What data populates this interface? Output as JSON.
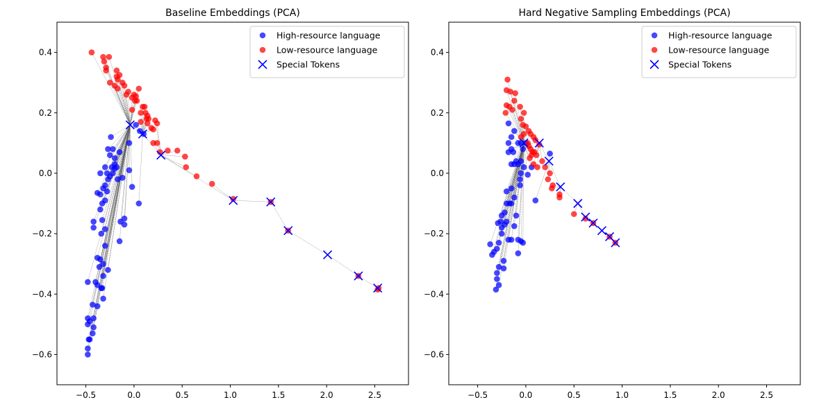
{
  "legend_labels": {
    "high": "High-resource language",
    "low": "Low-resource language",
    "special": "Special Tokens"
  },
  "colors": {
    "high": "#0000ff",
    "low": "#ff0000",
    "special": "#0000ff",
    "special_low": "#ff0000",
    "connector": "#555555"
  },
  "chart_data": [
    {
      "type": "scatter",
      "title": "Baseline Embeddings (PCA)",
      "xlabel": "",
      "ylabel": "",
      "xlim": [
        -0.8,
        2.85
      ],
      "ylim": [
        -0.7,
        0.5
      ],
      "xticks": [
        -0.5,
        0.0,
        0.5,
        1.0,
        1.5,
        2.0,
        2.5
      ],
      "xtick_labels": [
        "−0.5",
        "0.0",
        "0.5",
        "1.0",
        "1.5",
        "2.0",
        "2.5"
      ],
      "yticks": [
        -0.6,
        -0.4,
        -0.2,
        0.0,
        0.2,
        0.4
      ],
      "ytick_labels": [
        "−0.6",
        "−0.4",
        "−0.2",
        "0.0",
        "0.2",
        "0.4"
      ],
      "grid": false,
      "legend_position": "top-right",
      "series": [
        {
          "name": "High-resource language",
          "marker": "circle",
          "points": [
            [
              -0.48,
              -0.6
            ],
            [
              -0.48,
              -0.58
            ],
            [
              -0.47,
              -0.55
            ],
            [
              -0.46,
              -0.55
            ],
            [
              -0.48,
              -0.5
            ],
            [
              -0.48,
              -0.48
            ],
            [
              -0.46,
              -0.49
            ],
            [
              -0.43,
              -0.53
            ],
            [
              -0.42,
              -0.51
            ],
            [
              -0.42,
              -0.48
            ],
            [
              -0.43,
              -0.435
            ],
            [
              -0.38,
              -0.44
            ],
            [
              -0.32,
              -0.415
            ],
            [
              -0.48,
              -0.36
            ],
            [
              -0.4,
              -0.36
            ],
            [
              -0.38,
              -0.37
            ],
            [
              -0.34,
              -0.38
            ],
            [
              -0.33,
              -0.38
            ],
            [
              -0.32,
              -0.34
            ],
            [
              -0.27,
              -0.32
            ],
            [
              -0.36,
              -0.31
            ],
            [
              -0.38,
              -0.28
            ],
            [
              -0.35,
              -0.285
            ],
            [
              -0.32,
              -0.3
            ],
            [
              -0.3,
              -0.24
            ],
            [
              -0.3,
              -0.185
            ],
            [
              -0.33,
              -0.155
            ],
            [
              -0.34,
              -0.2
            ],
            [
              -0.42,
              -0.18
            ],
            [
              -0.42,
              -0.16
            ],
            [
              -0.14,
              -0.16
            ],
            [
              -0.1,
              -0.15
            ],
            [
              -0.1,
              -0.17
            ],
            [
              -0.15,
              -0.225
            ],
            [
              -0.35,
              -0.12
            ],
            [
              -0.33,
              -0.1
            ],
            [
              -0.3,
              -0.09
            ],
            [
              -0.35,
              -0.07
            ],
            [
              -0.38,
              -0.065
            ],
            [
              -0.32,
              -0.05
            ],
            [
              -0.3,
              -0.04
            ],
            [
              -0.28,
              -0.06
            ],
            [
              -0.27,
              -0.02
            ],
            [
              -0.25,
              -0.01
            ],
            [
              -0.22,
              0.0
            ],
            [
              -0.28,
              0.0
            ],
            [
              -0.35,
              0.0
            ],
            [
              -0.3,
              0.02
            ],
            [
              -0.23,
              0.02
            ],
            [
              -0.2,
              0.03
            ],
            [
              -0.2,
              0.015
            ],
            [
              -0.18,
              0.02
            ],
            [
              -0.17,
              -0.02
            ],
            [
              -0.12,
              -0.015
            ],
            [
              -0.05,
              0.01
            ],
            [
              -0.02,
              -0.045
            ],
            [
              -0.25,
              0.06
            ],
            [
              -0.27,
              0.08
            ],
            [
              -0.22,
              0.08
            ],
            [
              -0.24,
              0.12
            ],
            [
              -0.2,
              0.05
            ],
            [
              -0.15,
              0.07
            ],
            [
              -0.05,
              0.1
            ],
            [
              0.05,
              -0.1
            ],
            [
              0.06,
              0.14
            ],
            [
              0.1,
              0.13
            ],
            [
              0.02,
              0.16
            ]
          ]
        },
        {
          "name": "Low-resource language",
          "marker": "circle",
          "points": [
            [
              -0.44,
              0.4
            ],
            [
              -0.32,
              0.385
            ],
            [
              -0.31,
              0.37
            ],
            [
              -0.29,
              0.35
            ],
            [
              -0.29,
              0.34
            ],
            [
              -0.26,
              0.385
            ],
            [
              -0.25,
              0.3
            ],
            [
              -0.2,
              0.29
            ],
            [
              -0.18,
              0.34
            ],
            [
              -0.18,
              0.32
            ],
            [
              -0.17,
              0.31
            ],
            [
              -0.17,
              0.28
            ],
            [
              -0.15,
              0.325
            ],
            [
              -0.12,
              0.3
            ],
            [
              -0.1,
              0.29
            ],
            [
              -0.08,
              0.26
            ],
            [
              -0.06,
              0.27
            ],
            [
              -0.02,
              0.25
            ],
            [
              -0.02,
              0.21
            ],
            [
              0.0,
              0.26
            ],
            [
              0.01,
              0.24
            ],
            [
              0.02,
              0.255
            ],
            [
              0.03,
              0.24
            ],
            [
              0.05,
              0.28
            ],
            [
              0.07,
              0.2
            ],
            [
              0.07,
              0.17
            ],
            [
              0.09,
              0.22
            ],
            [
              0.11,
              0.22
            ],
            [
              0.12,
              0.2
            ],
            [
              0.14,
              0.19
            ],
            [
              0.13,
              0.18
            ],
            [
              0.14,
              0.165
            ],
            [
              0.15,
              0.18
            ],
            [
              0.18,
              0.15
            ],
            [
              0.2,
              0.145
            ],
            [
              0.22,
              0.175
            ],
            [
              0.24,
              0.165
            ],
            [
              0.2,
              0.1
            ],
            [
              0.24,
              0.1
            ],
            [
              0.27,
              0.07
            ],
            [
              0.35,
              0.075
            ],
            [
              0.45,
              0.075
            ],
            [
              0.53,
              0.055
            ],
            [
              0.54,
              0.02
            ],
            [
              0.65,
              -0.01
            ],
            [
              0.81,
              -0.035
            ],
            [
              1.03,
              -0.085
            ],
            [
              1.42,
              -0.095
            ],
            [
              1.6,
              -0.19
            ],
            [
              2.33,
              -0.34
            ],
            [
              2.53,
              -0.385
            ],
            [
              2.54,
              -0.38
            ]
          ]
        },
        {
          "name": "Special Tokens",
          "marker": "x",
          "points": [
            [
              -0.04,
              0.16
            ],
            [
              0.09,
              0.13
            ],
            [
              0.28,
              0.06
            ],
            [
              1.03,
              -0.09
            ],
            [
              1.42,
              -0.095
            ],
            [
              1.6,
              -0.19
            ],
            [
              2.01,
              -0.27
            ],
            [
              2.33,
              -0.34
            ],
            [
              2.53,
              -0.38
            ]
          ]
        }
      ]
    },
    {
      "type": "scatter",
      "title": "Hard Negative Sampling Embeddings (PCA)",
      "xlabel": "",
      "ylabel": "",
      "xlim": [
        -0.8,
        2.85
      ],
      "ylim": [
        -0.7,
        0.5
      ],
      "xticks": [
        -0.5,
        0.0,
        0.5,
        1.0,
        1.5,
        2.0,
        2.5
      ],
      "xtick_labels": [
        "−0.5",
        "0.0",
        "0.5",
        "1.0",
        "1.5",
        "2.0",
        "2.5"
      ],
      "yticks": [
        -0.6,
        -0.4,
        -0.2,
        0.0,
        0.2,
        0.4
      ],
      "ytick_labels": [
        "−0.6",
        "−0.4",
        "−0.2",
        "0.0",
        "0.2",
        "0.4"
      ],
      "grid": false,
      "legend_position": "top-right",
      "series": [
        {
          "name": "High-resource language",
          "marker": "circle",
          "points": [
            [
              -0.31,
              -0.385
            ],
            [
              -0.28,
              -0.37
            ],
            [
              -0.3,
              -0.35
            ],
            [
              -0.3,
              -0.33
            ],
            [
              -0.28,
              -0.31
            ],
            [
              -0.23,
              -0.315
            ],
            [
              -0.23,
              -0.29
            ],
            [
              -0.35,
              -0.27
            ],
            [
              -0.33,
              -0.26
            ],
            [
              -0.3,
              -0.25
            ],
            [
              -0.37,
              -0.235
            ],
            [
              -0.28,
              -0.23
            ],
            [
              -0.25,
              -0.2
            ],
            [
              -0.25,
              -0.18
            ],
            [
              -0.26,
              -0.16
            ],
            [
              -0.29,
              -0.165
            ],
            [
              -0.25,
              -0.14
            ],
            [
              -0.22,
              -0.13
            ],
            [
              -0.22,
              -0.17
            ],
            [
              -0.2,
              -0.16
            ],
            [
              -0.18,
              -0.22
            ],
            [
              -0.15,
              -0.22
            ],
            [
              -0.12,
              -0.175
            ],
            [
              -0.1,
              -0.14
            ],
            [
              -0.08,
              -0.265
            ],
            [
              -0.08,
              -0.22
            ],
            [
              -0.05,
              -0.225
            ],
            [
              -0.03,
              -0.23
            ],
            [
              -0.2,
              -0.1
            ],
            [
              -0.17,
              -0.1
            ],
            [
              -0.15,
              -0.1
            ],
            [
              -0.12,
              -0.08
            ],
            [
              -0.2,
              -0.06
            ],
            [
              -0.15,
              -0.05
            ],
            [
              -0.06,
              -0.04
            ],
            [
              -0.06,
              -0.02
            ],
            [
              -0.05,
              0.0
            ],
            [
              -0.15,
              0.03
            ],
            [
              -0.12,
              0.03
            ],
            [
              -0.1,
              0.04
            ],
            [
              -0.08,
              0.03
            ],
            [
              -0.05,
              0.04
            ],
            [
              -0.02,
              0.02
            ],
            [
              0.02,
              -0.005
            ],
            [
              0.06,
              0.02
            ],
            [
              -0.18,
              0.07
            ],
            [
              -0.15,
              0.08
            ],
            [
              -0.13,
              0.07
            ],
            [
              -0.18,
              0.1
            ],
            [
              -0.15,
              0.12
            ],
            [
              -0.12,
              0.14
            ],
            [
              -0.08,
              0.1
            ],
            [
              -0.05,
              0.1
            ],
            [
              -0.03,
              0.08
            ],
            [
              0.0,
              0.1
            ],
            [
              -0.18,
              0.165
            ],
            [
              0.1,
              -0.09
            ],
            [
              0.25,
              0.065
            ]
          ]
        },
        {
          "name": "Low-resource language",
          "marker": "circle",
          "points": [
            [
              -0.19,
              0.31
            ],
            [
              -0.2,
              0.275
            ],
            [
              -0.16,
              0.27
            ],
            [
              -0.11,
              0.265
            ],
            [
              -0.12,
              0.24
            ],
            [
              -0.2,
              0.225
            ],
            [
              -0.17,
              0.22
            ],
            [
              -0.14,
              0.21
            ],
            [
              -0.21,
              0.2
            ],
            [
              -0.06,
              0.22
            ],
            [
              -0.05,
              0.18
            ],
            [
              -0.02,
              0.2
            ],
            [
              -0.03,
              0.16
            ],
            [
              0.0,
              0.155
            ],
            [
              -0.02,
              0.13
            ],
            [
              0.03,
              0.14
            ],
            [
              0.05,
              0.13
            ],
            [
              0.08,
              0.12
            ],
            [
              0.1,
              0.11
            ],
            [
              0.14,
              0.095
            ],
            [
              -0.05,
              0.12
            ],
            [
              0.02,
              0.1
            ],
            [
              0.03,
              0.09
            ],
            [
              0.05,
              0.08
            ],
            [
              0.06,
              0.06
            ],
            [
              0.07,
              0.07
            ],
            [
              0.09,
              0.07
            ],
            [
              0.11,
              0.06
            ],
            [
              0.04,
              0.05
            ],
            [
              0.08,
              0.03
            ],
            [
              0.12,
              0.02
            ],
            [
              0.17,
              0.04
            ],
            [
              0.2,
              0.02
            ],
            [
              0.25,
              0.0
            ],
            [
              0.28,
              -0.04
            ],
            [
              0.23,
              -0.02
            ],
            [
              0.27,
              -0.05
            ],
            [
              0.35,
              -0.07
            ],
            [
              0.35,
              -0.08
            ],
            [
              0.5,
              -0.135
            ],
            [
              0.62,
              -0.15
            ],
            [
              0.7,
              -0.165
            ],
            [
              0.87,
              -0.21
            ],
            [
              0.93,
              -0.23
            ]
          ]
        },
        {
          "name": "Special Tokens",
          "marker": "x",
          "points": [
            [
              -0.02,
              0.1
            ],
            [
              0.14,
              0.1
            ],
            [
              0.24,
              0.04
            ],
            [
              0.36,
              -0.045
            ],
            [
              0.54,
              -0.1
            ],
            [
              0.62,
              -0.145
            ],
            [
              0.7,
              -0.165
            ],
            [
              0.79,
              -0.19
            ],
            [
              0.87,
              -0.21
            ],
            [
              0.93,
              -0.23
            ]
          ]
        }
      ]
    }
  ]
}
